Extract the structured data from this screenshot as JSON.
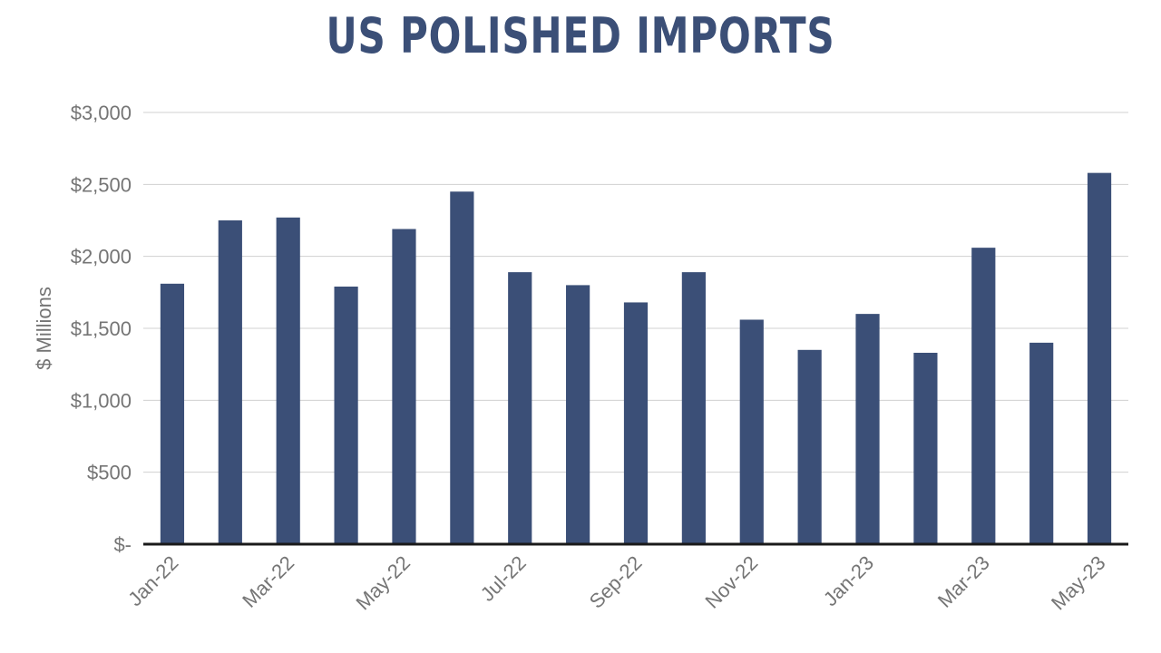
{
  "chart_data": {
    "type": "bar",
    "title": "US POLISHED IMPORTS",
    "ylabel": "$ Millions",
    "xlabel": "",
    "ylim": [
      0,
      3000
    ],
    "yticks": [
      0,
      500,
      1000,
      1500,
      2000,
      2500,
      3000
    ],
    "ytick_labels": [
      "$-",
      "$500",
      "$1,000",
      "$1,500",
      "$2,000",
      "$2,500",
      "$3,000"
    ],
    "grid": true,
    "legend": "none",
    "bar_color": "#3b4f77",
    "categories": [
      "Jan-22",
      "Feb-22",
      "Mar-22",
      "Apr-22",
      "May-22",
      "Jun-22",
      "Jul-22",
      "Aug-22",
      "Sep-22",
      "Oct-22",
      "Nov-22",
      "Dec-22",
      "Jan-23",
      "Feb-23",
      "Mar-23",
      "Apr-23",
      "May-23"
    ],
    "xtick_labels_shown": [
      "Jan-22",
      "",
      "Mar-22",
      "",
      "May-22",
      "",
      "Jul-22",
      "",
      "Sep-22",
      "",
      "Nov-22",
      "",
      "Jan-23",
      "",
      "Mar-23",
      "",
      "May-23"
    ],
    "values": [
      1810,
      2250,
      2270,
      1790,
      2190,
      2450,
      1890,
      1800,
      1680,
      1890,
      1560,
      1350,
      1600,
      1330,
      2060,
      1400,
      2580
    ]
  }
}
